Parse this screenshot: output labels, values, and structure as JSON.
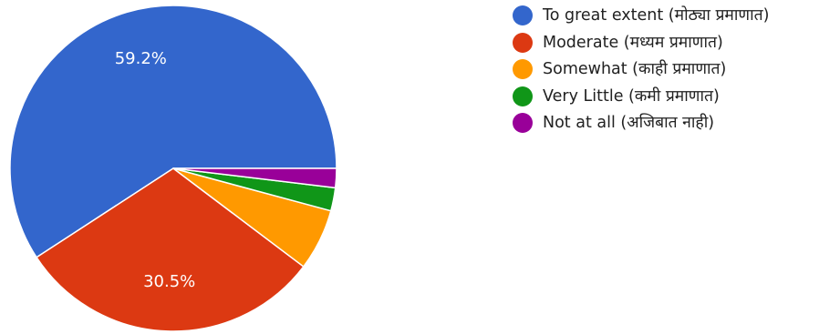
{
  "chart_data": {
    "type": "pie",
    "categories": [
      "To great extent (मोठ्या प्रमाणात)",
      "Moderate (मध्यम प्रमाणात)",
      "Somewhat (काही प्रमाणात)",
      "Very Little (कमी प्रमाणात)",
      "Not at all (अजिबात नाही)"
    ],
    "values": [
      59.2,
      30.5,
      6.1,
      2.3,
      1.9
    ],
    "data_labels": [
      "59.2%",
      "30.5%",
      "",
      "",
      ""
    ],
    "colors": [
      "#3366cc",
      "#dc3912",
      "#ff9900",
      "#109618",
      "#990099"
    ],
    "legend_position": "right"
  }
}
